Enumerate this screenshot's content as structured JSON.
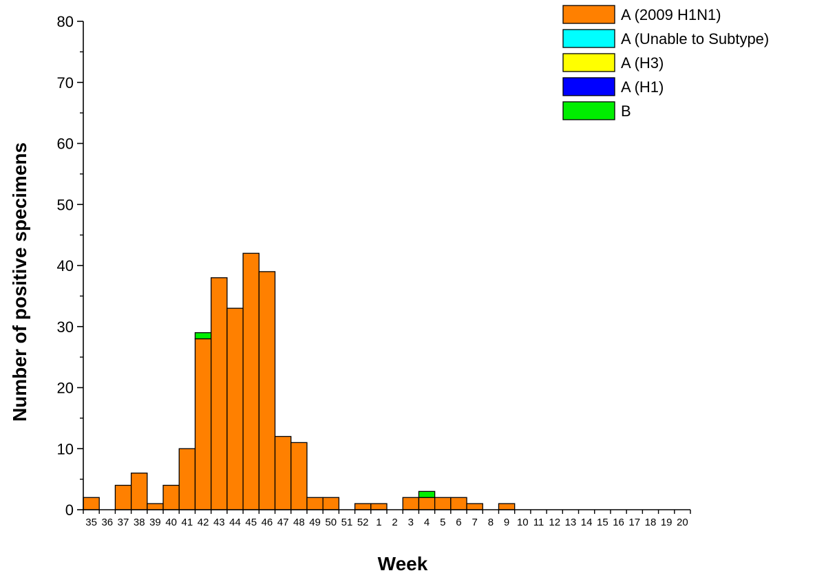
{
  "chart_data": {
    "type": "bar",
    "stacked": true,
    "xlabel": "Week",
    "ylabel": "Number of positive specimens",
    "ylim": [
      0,
      80
    ],
    "yticks": [
      0,
      10,
      20,
      30,
      40,
      50,
      60,
      70,
      80
    ],
    "grid": false,
    "legend_position": "top-right",
    "categories": [
      "35",
      "36",
      "37",
      "38",
      "39",
      "40",
      "41",
      "42",
      "43",
      "44",
      "45",
      "46",
      "47",
      "48",
      "49",
      "50",
      "51",
      "52",
      "1",
      "2",
      "3",
      "4",
      "5",
      "6",
      "7",
      "8",
      "9",
      "10",
      "11",
      "12",
      "13",
      "14",
      "15",
      "16",
      "17",
      "18",
      "19",
      "20"
    ],
    "series": [
      {
        "name": "A (2009 H1N1)",
        "color": "#FF8000",
        "values": [
          2,
          0,
          4,
          6,
          1,
          4,
          10,
          28,
          38,
          33,
          42,
          39,
          12,
          11,
          2,
          2,
          0,
          1,
          1,
          0,
          2,
          2,
          2,
          2,
          1,
          0,
          1,
          0,
          0,
          0,
          0,
          0,
          0,
          0,
          0,
          0,
          0,
          0
        ]
      },
      {
        "name": "A (Unable to Subtype)",
        "color": "#00FFFF",
        "values": [
          0,
          0,
          0,
          0,
          0,
          0,
          0,
          0,
          0,
          0,
          0,
          0,
          0,
          0,
          0,
          0,
          0,
          0,
          0,
          0,
          0,
          0,
          0,
          0,
          0,
          0,
          0,
          0,
          0,
          0,
          0,
          0,
          0,
          0,
          0,
          0,
          0,
          0
        ]
      },
      {
        "name": "A (H3)",
        "color": "#FFFF00",
        "values": [
          0,
          0,
          0,
          0,
          0,
          0,
          0,
          0,
          0,
          0,
          0,
          0,
          0,
          0,
          0,
          0,
          0,
          0,
          0,
          0,
          0,
          0,
          0,
          0,
          0,
          0,
          0,
          0,
          0,
          0,
          0,
          0,
          0,
          0,
          0,
          0,
          0,
          0
        ]
      },
      {
        "name": "A (H1)",
        "color": "#0000FF",
        "values": [
          0,
          0,
          0,
          0,
          0,
          0,
          0,
          0,
          0,
          0,
          0,
          0,
          0,
          0,
          0,
          0,
          0,
          0,
          0,
          0,
          0,
          0,
          0,
          0,
          0,
          0,
          0,
          0,
          0,
          0,
          0,
          0,
          0,
          0,
          0,
          0,
          0,
          0
        ]
      },
      {
        "name": "B",
        "color": "#00EE00",
        "values": [
          0,
          0,
          0,
          0,
          0,
          0,
          0,
          1,
          0,
          0,
          0,
          0,
          0,
          0,
          0,
          0,
          0,
          0,
          0,
          0,
          0,
          1,
          0,
          0,
          0,
          0,
          0,
          0,
          0,
          0,
          0,
          0,
          0,
          0,
          0,
          0,
          0,
          0
        ]
      }
    ]
  }
}
